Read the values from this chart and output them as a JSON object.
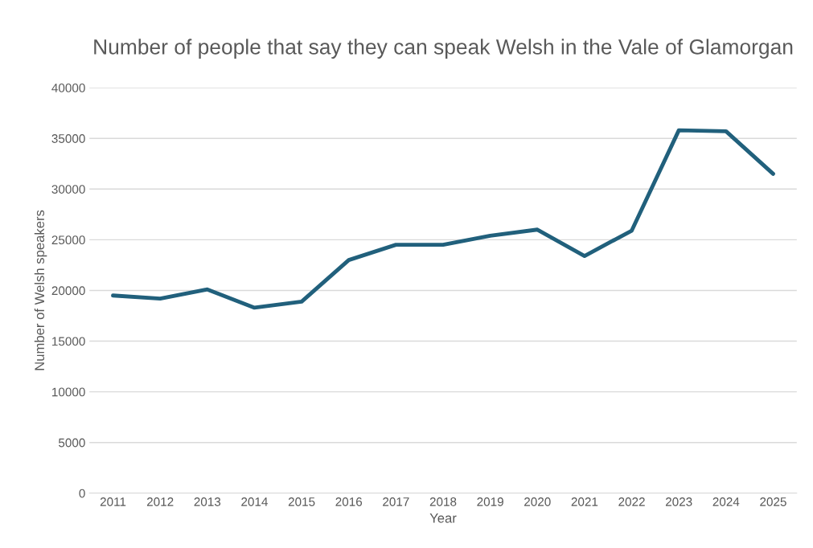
{
  "chart_data": {
    "type": "line",
    "title": "Number of people that say they can speak Welsh in the Vale of Glamorgan",
    "xlabel": "Year",
    "ylabel": "Number of Welsh speakers",
    "categories": [
      "2011",
      "2012",
      "2013",
      "2014",
      "2015",
      "2016",
      "2017",
      "2018",
      "2019",
      "2020",
      "2021",
      "2022",
      "2023",
      "2024",
      "2025"
    ],
    "series": [
      {
        "color": "#21607c",
        "values": [
          19500,
          19200,
          20100,
          18300,
          18900,
          23000,
          24500,
          24500,
          25400,
          26000,
          23400,
          25900,
          35800,
          35700,
          31500
        ]
      }
    ],
    "ylim": [
      0,
      40000
    ],
    "yticks": [
      0,
      5000,
      10000,
      15000,
      20000,
      25000,
      30000,
      35000,
      40000
    ],
    "grid": "y",
    "legend": false
  }
}
